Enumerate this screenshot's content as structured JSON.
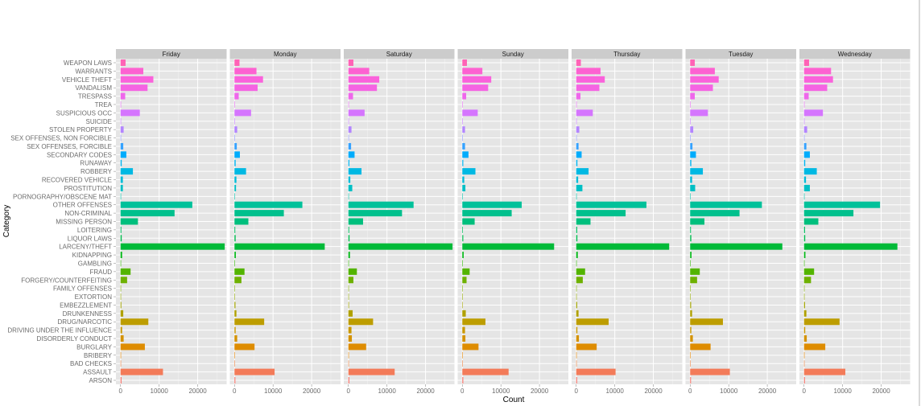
{
  "chart_data": {
    "type": "bar",
    "orientation": "horizontal",
    "facet_by": "day",
    "xlabel": "Count",
    "ylabel": "Category",
    "xlim": [
      -1200,
      27500
    ],
    "xticks": [
      0,
      10000,
      20000
    ],
    "grid": true,
    "legend": "none",
    "panels": [
      "Friday",
      "Monday",
      "Saturday",
      "Sunday",
      "Thursday",
      "Tuesday",
      "Wednesday"
    ],
    "categories": [
      "ARSON",
      "ASSAULT",
      "BAD CHECKS",
      "BRIBERY",
      "BURGLARY",
      "DISORDERLY CONDUCT",
      "DRIVING UNDER THE INFLUENCE",
      "DRUG/NARCOTIC",
      "DRUNKENNESS",
      "EMBEZZLEMENT",
      "EXTORTION",
      "FAMILY OFFENSES",
      "FORGERY/COUNTERFEITING",
      "FRAUD",
      "GAMBLING",
      "KIDNAPPING",
      "LARCENY/THEFT",
      "LIQUOR LAWS",
      "LOITERING",
      "MISSING PERSON",
      "NON-CRIMINAL",
      "OTHER OFFENSES",
      "PORNOGRAPHY/OBSCENE MAT",
      "PROSTITUTION",
      "RECOVERED VEHICLE",
      "ROBBERY",
      "RUNAWAY",
      "SECONDARY CODES",
      "SEX OFFENSES, FORCIBLE",
      "SEX OFFENSES, NON FORCIBLE",
      "STOLEN PROPERTY",
      "SUICIDE",
      "SUSPICIOUS OCC",
      "TREA",
      "TRESPASS",
      "VANDALISM",
      "VEHICLE THEFT",
      "WARRANTS",
      "WEAPON LAWS"
    ],
    "colors": [
      "#F8766D",
      "#F37B59",
      "#ED813E",
      "#E58700",
      "#DE8C00",
      "#D49200",
      "#C99800",
      "#BD9D00",
      "#B0A100",
      "#A3A500",
      "#93AA00",
      "#82AD00",
      "#6EB100",
      "#53B400",
      "#2DB600",
      "#00B815",
      "#00BA38",
      "#00BB4E",
      "#00BD5E",
      "#00BF7D",
      "#00C08D",
      "#00C19A",
      "#00C1A7",
      "#00BFC4",
      "#00BCD8",
      "#00B9E3",
      "#00B4EF",
      "#00ACFC",
      "#35A2FF",
      "#8B93FF",
      "#B385FF",
      "#C77CFF",
      "#D575FE",
      "#E76BF3",
      "#EF67EB",
      "#F564E3",
      "#FA62DB",
      "#FD61D1",
      "#FF63B6"
    ],
    "series": [
      {
        "name": "Friday",
        "values": [
          250,
          11000,
          30,
          40,
          6300,
          800,
          400,
          7200,
          700,
          200,
          30,
          70,
          1700,
          2600,
          20,
          400,
          27000,
          300,
          200,
          4500,
          14000,
          18600,
          3,
          600,
          600,
          3200,
          300,
          1500,
          700,
          20,
          800,
          80,
          5000,
          1,
          1200,
          7000,
          8500,
          5900,
          1300
        ]
      },
      {
        "name": "Monday",
        "values": [
          230,
          10400,
          40,
          40,
          5200,
          700,
          300,
          7700,
          500,
          250,
          25,
          70,
          1800,
          2600,
          18,
          350,
          23400,
          300,
          200,
          3600,
          12800,
          17600,
          3,
          400,
          500,
          3000,
          300,
          1400,
          600,
          20,
          700,
          80,
          4300,
          1,
          1100,
          6000,
          7400,
          5700,
          1300
        ]
      },
      {
        "name": "Saturday",
        "values": [
          250,
          12000,
          30,
          40,
          4600,
          900,
          800,
          6400,
          1100,
          150,
          30,
          70,
          1300,
          2200,
          20,
          400,
          27000,
          300,
          200,
          3800,
          13900,
          16900,
          3,
          1000,
          500,
          3400,
          250,
          1600,
          700,
          20,
          800,
          80,
          4200,
          1,
          1200,
          7400,
          8000,
          5400,
          1300
        ]
      },
      {
        "name": "Sunday",
        "values": [
          250,
          12000,
          30,
          30,
          4200,
          800,
          700,
          6000,
          900,
          120,
          25,
          60,
          1100,
          1900,
          20,
          350,
          23800,
          250,
          150,
          3200,
          12800,
          15400,
          2,
          800,
          500,
          3400,
          250,
          1600,
          700,
          20,
          700,
          70,
          4000,
          1,
          1000,
          6700,
          7500,
          5200,
          1200
        ]
      },
      {
        "name": "Thursday",
        "values": [
          230,
          10200,
          40,
          40,
          5300,
          700,
          300,
          8400,
          600,
          250,
          30,
          70,
          1700,
          2300,
          20,
          400,
          24100,
          300,
          250,
          3700,
          12800,
          18200,
          3,
          1600,
          500,
          3200,
          300,
          1400,
          600,
          20,
          800,
          80,
          4300,
          1,
          1100,
          6000,
          7400,
          6300,
          1200
        ]
      },
      {
        "name": "Tuesday",
        "values": [
          220,
          10300,
          40,
          40,
          5300,
          700,
          300,
          8500,
          500,
          250,
          25,
          70,
          1800,
          2500,
          18,
          350,
          23900,
          300,
          200,
          3700,
          12800,
          18600,
          3,
          1300,
          500,
          3300,
          300,
          1500,
          600,
          20,
          800,
          80,
          4600,
          1,
          1200,
          5900,
          7400,
          6400,
          1200
        ]
      },
      {
        "name": "Wednesday",
        "values": [
          230,
          10700,
          40,
          40,
          5500,
          700,
          300,
          9200,
          600,
          250,
          30,
          70,
          1800,
          2600,
          20,
          350,
          24200,
          300,
          250,
          3700,
          12800,
          19700,
          3,
          1500,
          500,
          3300,
          300,
          1500,
          600,
          20,
          800,
          80,
          4900,
          1,
          1200,
          6000,
          7500,
          7000,
          1300
        ]
      }
    ]
  }
}
